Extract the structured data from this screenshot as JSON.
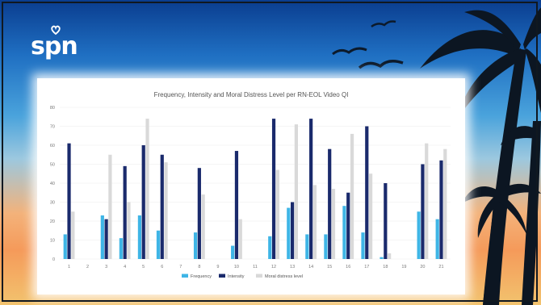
{
  "brand": {
    "logo_text": "spn"
  },
  "colors": {
    "frequency": "#3eb5e6",
    "intensity": "#1a2a6c",
    "moral_distress": "#d9d9d9"
  },
  "chart_data": {
    "type": "bar",
    "title": "Frequency, Intensity and Moral Distress Level per RN-EOL Video QI",
    "xlabel": "",
    "ylabel": "",
    "ylim": [
      0,
      80
    ],
    "yticks": [
      0,
      10,
      20,
      30,
      40,
      50,
      60,
      70,
      80
    ],
    "categories": [
      "1",
      "2",
      "3",
      "4",
      "5",
      "6",
      "7",
      "8",
      "9",
      "10",
      "11",
      "12",
      "13",
      "14",
      "15",
      "16",
      "17",
      "18",
      "19",
      "20",
      "21"
    ],
    "series": [
      {
        "name": "Frequency",
        "values": [
          13,
          0,
          23,
          11,
          23,
          15,
          0,
          14,
          0,
          7,
          0,
          12,
          27,
          13,
          13,
          28,
          14,
          1,
          0,
          25,
          21
        ]
      },
      {
        "name": "Intensity",
        "values": [
          61,
          0,
          21,
          49,
          60,
          55,
          0,
          48,
          0,
          57,
          0,
          74,
          30,
          74,
          58,
          35,
          70,
          40,
          0,
          50,
          52
        ]
      },
      {
        "name": "Moral distress level",
        "values": [
          25,
          0,
          55,
          30,
          74,
          51,
          0,
          34,
          0,
          21,
          0,
          47,
          71,
          39,
          37,
          66,
          45,
          3,
          0,
          61,
          58
        ]
      }
    ],
    "legend_position": "bottom-center",
    "grid": true
  }
}
